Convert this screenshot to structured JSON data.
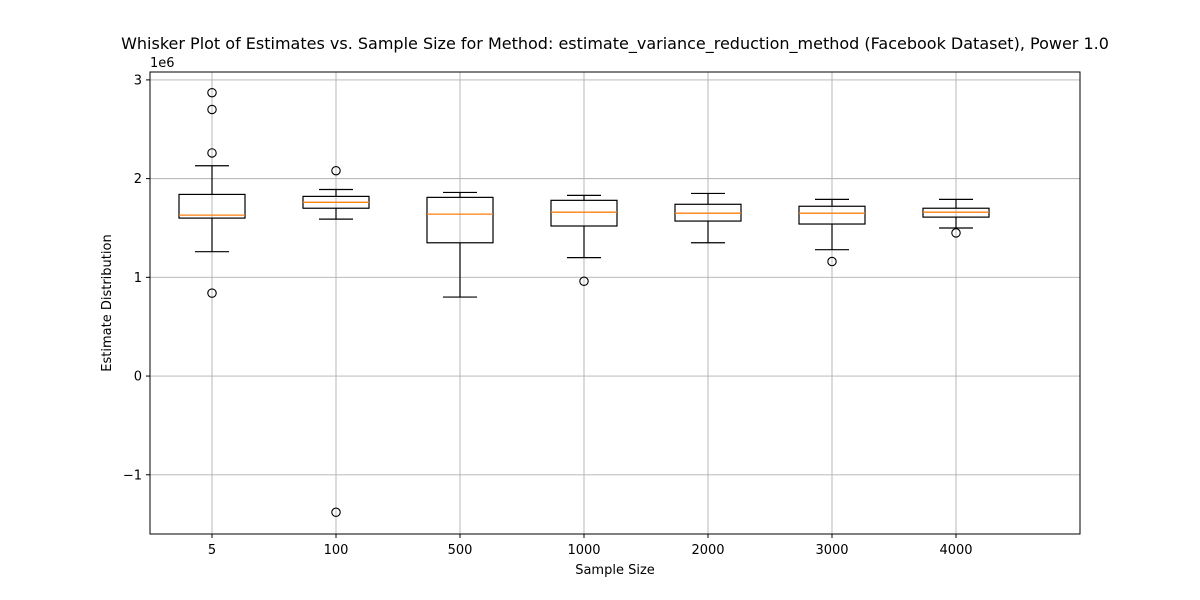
{
  "chart_data": {
    "type": "box",
    "title": "Whisker Plot of Estimates vs. Sample Size for Method: estimate_variance_reduction_method (Facebook Dataset), Power 1.0",
    "xlabel": "Sample Size",
    "ylabel": "Estimate Distribution",
    "y_offset_label": "1e6",
    "y_scale": 1000000,
    "ylim": [
      -1600000,
      3080000
    ],
    "yticks": [
      -1000000,
      0,
      1000000,
      2000000,
      3000000
    ],
    "ytick_labels": [
      "−1",
      "0",
      "1",
      "2",
      "3"
    ],
    "grid": true,
    "categories": [
      "5",
      "100",
      "500",
      "1000",
      "2000",
      "3000",
      "4000"
    ],
    "boxes": [
      {
        "label": "5",
        "whisker_low": 1260000,
        "q1": 1600000,
        "median": 1630000,
        "q3": 1840000,
        "whisker_high": 2130000,
        "fliers": [
          840000,
          2260000,
          2700000,
          2870000
        ]
      },
      {
        "label": "100",
        "whisker_low": 1590000,
        "q1": 1700000,
        "median": 1760000,
        "q3": 1820000,
        "whisker_high": 1890000,
        "fliers": [
          -1380000,
          2080000
        ]
      },
      {
        "label": "500",
        "whisker_low": 800000,
        "q1": 1350000,
        "median": 1640000,
        "q3": 1810000,
        "whisker_high": 1860000,
        "fliers": []
      },
      {
        "label": "1000",
        "whisker_low": 1200000,
        "q1": 1520000,
        "median": 1660000,
        "q3": 1780000,
        "whisker_high": 1830000,
        "fliers": [
          960000
        ]
      },
      {
        "label": "2000",
        "whisker_low": 1350000,
        "q1": 1570000,
        "median": 1650000,
        "q3": 1740000,
        "whisker_high": 1850000,
        "fliers": []
      },
      {
        "label": "3000",
        "whisker_low": 1280000,
        "q1": 1540000,
        "median": 1650000,
        "q3": 1720000,
        "whisker_high": 1790000,
        "fliers": [
          1160000
        ]
      },
      {
        "label": "4000",
        "whisker_low": 1500000,
        "q1": 1610000,
        "median": 1660000,
        "q3": 1700000,
        "whisker_high": 1790000,
        "fliers": [
          1450000
        ]
      }
    ],
    "colors": {
      "median": "#ff7f0e",
      "box": "#000000",
      "grid": "#b0b0b0"
    }
  }
}
